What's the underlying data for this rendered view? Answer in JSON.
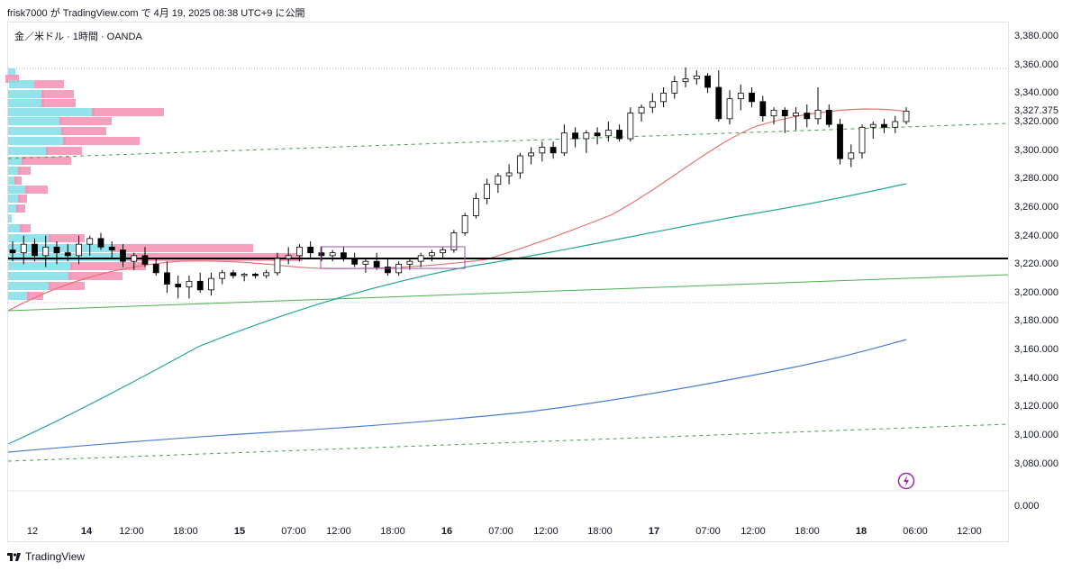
{
  "header": {
    "publish_note": "frisk7000 が TradingView.com で 4月 19, 2025 08:38 UTC+9 に公開"
  },
  "chart": {
    "symbol_title": "金／米ドル · 1時間 · OANDA"
  },
  "price_axis": {
    "labels": [
      "3,380.000",
      "3,360.000",
      "3,340.000",
      "3,327.375",
      "3,320.000",
      "3,300.000",
      "3,280.000",
      "3,260.000",
      "3,240.000",
      "3,220.000",
      "3,200.000",
      "3,180.000",
      "3,160.000",
      "3,140.000",
      "3,120.000",
      "3,100.000",
      "3,080.000",
      "0.000"
    ]
  },
  "time_axis": {
    "labels": [
      "12",
      "14",
      "12:00",
      "18:00",
      "15",
      "07:00",
      "12:00",
      "18:00",
      "16",
      "07:00",
      "12:00",
      "18:00",
      "17",
      "07:00",
      "12:00",
      "18:00",
      "18",
      "06:00",
      "12:00"
    ]
  },
  "footer": {
    "brand": "TradingView"
  },
  "chart_data": {
    "type": "candlestick",
    "symbol": "金／米ドル",
    "timeframe": "1時間",
    "source": "OANDA",
    "current_price": 3327.375,
    "y_range": [
      3070,
      3390
    ],
    "horizontal_level": 3224,
    "candles": [
      [
        3230,
        3236,
        3222,
        3228
      ],
      [
        3228,
        3240,
        3220,
        3234
      ],
      [
        3234,
        3238,
        3222,
        3226
      ],
      [
        3226,
        3240,
        3218,
        3232
      ],
      [
        3232,
        3236,
        3220,
        3228
      ],
      [
        3228,
        3234,
        3222,
        3226
      ],
      [
        3226,
        3240,
        3220,
        3234
      ],
      [
        3234,
        3240,
        3226,
        3238
      ],
      [
        3238,
        3242,
        3230,
        3232
      ],
      [
        3232,
        3236,
        3224,
        3230
      ],
      [
        3230,
        3234,
        3218,
        3222
      ],
      [
        3222,
        3228,
        3216,
        3226
      ],
      [
        3226,
        3232,
        3218,
        3220
      ],
      [
        3220,
        3224,
        3212,
        3214
      ],
      [
        3214,
        3222,
        3200,
        3206
      ],
      [
        3206,
        3212,
        3196,
        3204
      ],
      [
        3204,
        3212,
        3196,
        3208
      ],
      [
        3208,
        3214,
        3200,
        3202
      ],
      [
        3202,
        3214,
        3198,
        3210
      ],
      [
        3210,
        3216,
        3206,
        3214
      ],
      [
        3214,
        3216,
        3210,
        3212
      ],
      [
        3212,
        3214,
        3208,
        3213
      ],
      [
        3213,
        3214,
        3210,
        3212
      ],
      [
        3212,
        3216,
        3210,
        3214
      ],
      [
        3214,
        3228,
        3212,
        3224
      ],
      [
        3224,
        3232,
        3220,
        3226
      ],
      [
        3226,
        3234,
        3222,
        3232
      ],
      [
        3232,
        3236,
        3224,
        3228
      ],
      [
        3228,
        3232,
        3222,
        3226
      ],
      [
        3226,
        3230,
        3222,
        3228
      ],
      [
        3228,
        3232,
        3222,
        3224
      ],
      [
        3224,
        3228,
        3218,
        3220
      ],
      [
        3220,
        3224,
        3214,
        3222
      ],
      [
        3222,
        3228,
        3216,
        3218
      ],
      [
        3218,
        3224,
        3212,
        3214
      ],
      [
        3214,
        3222,
        3212,
        3220
      ],
      [
        3220,
        3224,
        3216,
        3222
      ],
      [
        3222,
        3228,
        3218,
        3226
      ],
      [
        3226,
        3230,
        3222,
        3228
      ],
      [
        3228,
        3232,
        3224,
        3230
      ],
      [
        3230,
        3244,
        3228,
        3242
      ],
      [
        3242,
        3256,
        3240,
        3254
      ],
      [
        3254,
        3270,
        3252,
        3266
      ],
      [
        3266,
        3280,
        3262,
        3276
      ],
      [
        3276,
        3284,
        3270,
        3282
      ],
      [
        3282,
        3290,
        3276,
        3284
      ],
      [
        3284,
        3298,
        3280,
        3296
      ],
      [
        3296,
        3302,
        3290,
        3298
      ],
      [
        3298,
        3306,
        3292,
        3302
      ],
      [
        3302,
        3306,
        3294,
        3298
      ],
      [
        3298,
        3318,
        3296,
        3312
      ],
      [
        3312,
        3316,
        3302,
        3308
      ],
      [
        3308,
        3314,
        3298,
        3312
      ],
      [
        3312,
        3316,
        3304,
        3310
      ],
      [
        3310,
        3320,
        3306,
        3314
      ],
      [
        3314,
        3318,
        3306,
        3308
      ],
      [
        3308,
        3330,
        3306,
        3326
      ],
      [
        3326,
        3332,
        3320,
        3330
      ],
      [
        3330,
        3340,
        3326,
        3334
      ],
      [
        3334,
        3344,
        3330,
        3340
      ],
      [
        3340,
        3352,
        3336,
        3348
      ],
      [
        3348,
        3358,
        3344,
        3350
      ],
      [
        3350,
        3356,
        3346,
        3352
      ],
      [
        3352,
        3354,
        3340,
        3344
      ],
      [
        3344,
        3356,
        3320,
        3322
      ],
      [
        3322,
        3342,
        3318,
        3336
      ],
      [
        3336,
        3346,
        3328,
        3340
      ],
      [
        3340,
        3344,
        3330,
        3334
      ],
      [
        3334,
        3338,
        3320,
        3324
      ],
      [
        3324,
        3330,
        3318,
        3328
      ],
      [
        3328,
        3330,
        3312,
        3324
      ],
      [
        3324,
        3330,
        3314,
        3326
      ],
      [
        3326,
        3332,
        3316,
        3322
      ],
      [
        3322,
        3344,
        3318,
        3328
      ],
      [
        3328,
        3332,
        3316,
        3318
      ],
      [
        3318,
        3322,
        3290,
        3294
      ],
      [
        3294,
        3304,
        3288,
        3298
      ],
      [
        3298,
        3318,
        3294,
        3316
      ],
      [
        3316,
        3320,
        3308,
        3318
      ],
      [
        3318,
        3322,
        3312,
        3316
      ],
      [
        3316,
        3324,
        3312,
        3320
      ],
      [
        3320,
        3330,
        3318,
        3327.375
      ]
    ]
  }
}
